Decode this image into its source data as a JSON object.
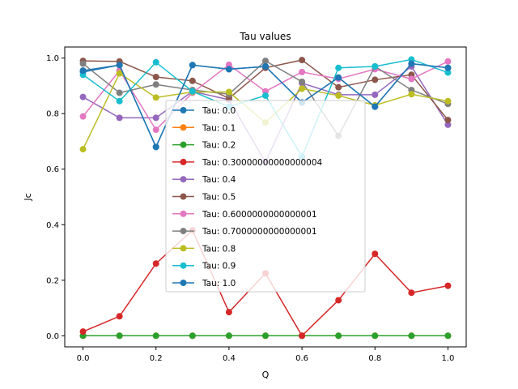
{
  "chart_data": {
    "type": "line",
    "title": "Tau values",
    "xlabel": "Q",
    "ylabel": "Jc",
    "xlim": [
      -0.05,
      1.05
    ],
    "ylim": [
      -0.04,
      1.04
    ],
    "xticks": [
      0.0,
      0.2,
      0.4,
      0.6,
      0.8,
      1.0
    ],
    "xtick_labels": [
      "0.0",
      "0.2",
      "0.4",
      "0.6",
      "0.8",
      "1.0"
    ],
    "yticks": [
      0.0,
      0.2,
      0.4,
      0.6,
      0.8,
      1.0
    ],
    "ytick_labels": [
      "0.0",
      "0.2",
      "0.4",
      "0.6",
      "0.8",
      "1.0"
    ],
    "grid": false,
    "legend_position": "center",
    "x": [
      0.0,
      0.1,
      0.2,
      0.3,
      0.4,
      0.5,
      0.6,
      0.7,
      0.8,
      0.9,
      1.0
    ],
    "series": [
      {
        "name": "Tau: 0.0",
        "color": "#1f77b4",
        "values": [
          0.95,
          0.975,
          0.68,
          0.975,
          0.96,
          0.97,
          0.84,
          0.93,
          0.825,
          0.98,
          0.965
        ]
      },
      {
        "name": "Tau: 0.1",
        "color": "#ff7f0e",
        "values": [
          0,
          0,
          0,
          0,
          0,
          0,
          0,
          0,
          0,
          0,
          0
        ]
      },
      {
        "name": "Tau: 0.2",
        "color": "#2ca02c",
        "values": [
          0,
          0,
          0,
          0,
          0,
          0,
          0,
          0,
          0,
          0,
          0
        ]
      },
      {
        "name": "Tau: 0.30000000000000004",
        "color": "#d62728",
        "values": [
          0.015,
          0.07,
          0.26,
          0.38,
          0.085,
          0.225,
          0.0,
          0.128,
          0.295,
          0.155,
          0.18
        ]
      },
      {
        "name": "Tau: 0.4",
        "color": "#9467bd",
        "values": [
          0.86,
          0.785,
          0.785,
          0.88,
          0.85,
          0.625,
          0.91,
          0.868,
          0.868,
          0.97,
          0.76
        ]
      },
      {
        "name": "Tau: 0.5",
        "color": "#8c564b",
        "values": [
          0.99,
          0.988,
          0.932,
          0.918,
          0.855,
          0.965,
          0.993,
          0.895,
          0.922,
          0.94,
          0.777
        ]
      },
      {
        "name": "Tau: 0.6000000000000001",
        "color": "#e377c2",
        "values": [
          0.79,
          0.955,
          0.742,
          0.875,
          0.976,
          0.88,
          0.95,
          0.925,
          0.96,
          0.925,
          0.988
        ]
      },
      {
        "name": "Tau: 0.7000000000000001",
        "color": "#7f7f7f",
        "values": [
          0.98,
          0.875,
          0.905,
          0.885,
          0.87,
          0.99,
          0.915,
          0.72,
          0.97,
          0.885,
          0.835
        ]
      },
      {
        "name": "Tau: 0.8",
        "color": "#bcbd22",
        "values": [
          0.672,
          0.945,
          0.858,
          0.878,
          0.878,
          0.768,
          0.89,
          0.865,
          0.83,
          0.87,
          0.845
        ]
      },
      {
        "name": "Tau: 0.9",
        "color": "#17becf",
        "values": [
          0.94,
          0.845,
          0.985,
          0.88,
          0.825,
          0.865,
          0.645,
          0.965,
          0.97,
          0.995,
          0.948
        ]
      },
      {
        "name": "Tau: 1.0",
        "color": "#1f77b4",
        "values": [
          0.955,
          0.975,
          0.68,
          0.975,
          0.96,
          0.97,
          0.84,
          0.93,
          0.825,
          0.98,
          0.965
        ]
      }
    ]
  }
}
